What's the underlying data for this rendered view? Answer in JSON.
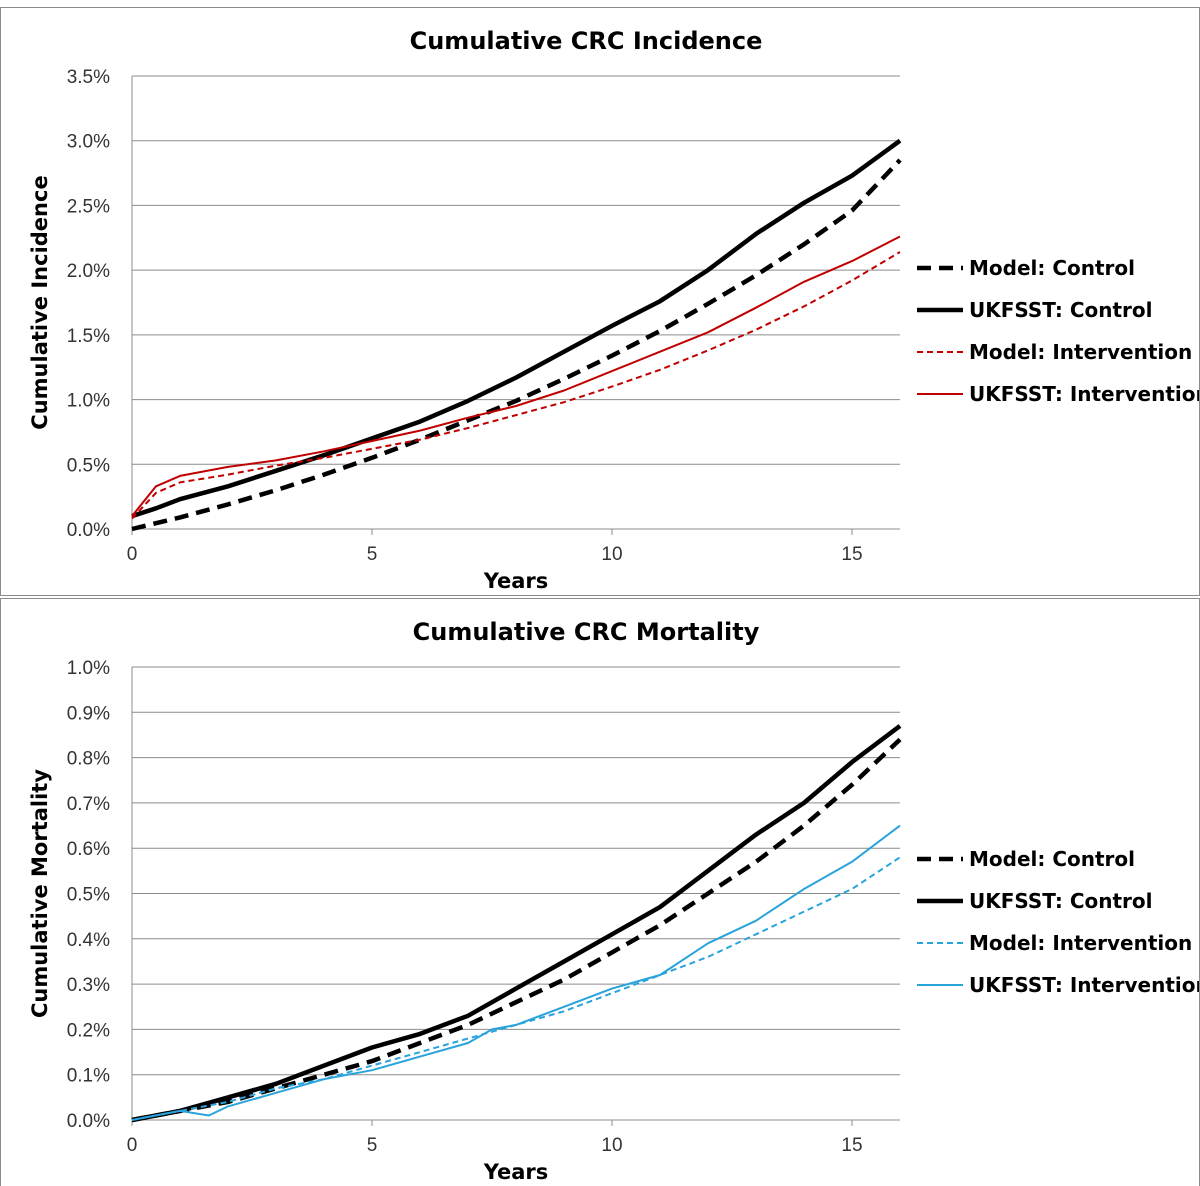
{
  "chart_data": [
    {
      "type": "line",
      "title": "Cumulative CRC Incidence",
      "xlabel": "Years",
      "ylabel": "Cumulative Incidence",
      "xlim": [
        0,
        16
      ],
      "ylim": [
        0,
        3.5
      ],
      "x_ticks": [
        "0",
        "5",
        "10",
        "15"
      ],
      "y_ticks": [
        "0.0%",
        "0.5%",
        "1.0%",
        "1.5%",
        "2.0%",
        "2.5%",
        "3.0%",
        "3.5%"
      ],
      "grid": true,
      "legend_position": "right",
      "series": [
        {
          "name": "Model: Control",
          "color": "#000000",
          "style": "dashed-thick",
          "x": [
            0,
            1,
            2,
            3,
            4,
            5,
            6,
            7,
            8,
            9,
            10,
            11,
            12,
            13,
            14,
            15,
            16
          ],
          "y": [
            0.0,
            0.09,
            0.19,
            0.3,
            0.42,
            0.55,
            0.69,
            0.84,
            0.99,
            1.16,
            1.34,
            1.53,
            1.74,
            1.96,
            2.2,
            2.46,
            2.85
          ]
        },
        {
          "name": "UKFSST: Control",
          "color": "#000000",
          "style": "solid-thick",
          "x": [
            0,
            0.5,
            1,
            2,
            3,
            4,
            5,
            6,
            7,
            8,
            9,
            10,
            11,
            12,
            13,
            14,
            15,
            16
          ],
          "y": [
            0.1,
            0.16,
            0.23,
            0.33,
            0.45,
            0.57,
            0.7,
            0.83,
            0.99,
            1.17,
            1.37,
            1.57,
            1.76,
            2.0,
            2.28,
            2.52,
            2.73,
            3.0
          ]
        },
        {
          "name": "Model: Intervention",
          "color": "#c00000",
          "style": "dashed-thin",
          "x": [
            0,
            0.5,
            1,
            2,
            3,
            4,
            5,
            6,
            7,
            8,
            9,
            10,
            11,
            12,
            13,
            14,
            15,
            16
          ],
          "y": [
            0.08,
            0.28,
            0.36,
            0.42,
            0.49,
            0.55,
            0.62,
            0.69,
            0.78,
            0.88,
            0.98,
            1.1,
            1.23,
            1.38,
            1.54,
            1.72,
            1.92,
            2.14
          ]
        },
        {
          "name": "UKFSST: Intervention",
          "color": "#c00000",
          "style": "solid-thin",
          "x": [
            0,
            0.5,
            1,
            2,
            3,
            4,
            5,
            6,
            7,
            8,
            9,
            10,
            11,
            12,
            13,
            14,
            15,
            16
          ],
          "y": [
            0.1,
            0.33,
            0.41,
            0.48,
            0.53,
            0.6,
            0.68,
            0.76,
            0.86,
            0.95,
            1.07,
            1.22,
            1.37,
            1.52,
            1.71,
            1.91,
            2.07,
            2.26
          ]
        }
      ]
    },
    {
      "type": "line",
      "title": "Cumulative CRC Mortality",
      "xlabel": "Years",
      "ylabel": "Cumulative Mortality",
      "xlim": [
        0,
        16
      ],
      "ylim": [
        0,
        1.0
      ],
      "x_ticks": [
        "0",
        "5",
        "10",
        "15"
      ],
      "y_ticks": [
        "0.0%",
        "0.1%",
        "0.2%",
        "0.3%",
        "0.4%",
        "0.5%",
        "0.6%",
        "0.7%",
        "0.8%",
        "0.9%",
        "1.0%"
      ],
      "grid": true,
      "legend_position": "right",
      "series": [
        {
          "name": "Model: Control",
          "color": "#000000",
          "style": "dashed-thick",
          "x": [
            0,
            1,
            2,
            3,
            4,
            5,
            6,
            7,
            8,
            9,
            10,
            11,
            12,
            13,
            14,
            15,
            16
          ],
          "y": [
            0.0,
            0.02,
            0.04,
            0.07,
            0.1,
            0.13,
            0.17,
            0.21,
            0.26,
            0.31,
            0.37,
            0.43,
            0.5,
            0.57,
            0.65,
            0.74,
            0.84
          ]
        },
        {
          "name": "UKFSST: Control",
          "color": "#000000",
          "style": "solid-thick",
          "x": [
            0,
            1,
            2,
            3,
            4,
            5,
            6,
            7,
            8,
            9,
            10,
            11,
            12,
            13,
            14,
            15,
            16
          ],
          "y": [
            0.0,
            0.02,
            0.05,
            0.08,
            0.12,
            0.16,
            0.19,
            0.23,
            0.29,
            0.35,
            0.41,
            0.47,
            0.55,
            0.63,
            0.7,
            0.79,
            0.87
          ]
        },
        {
          "name": "Model: Intervention",
          "color": "#29a3dc",
          "style": "dashed-thin",
          "x": [
            0,
            1,
            2,
            3,
            4,
            5,
            6,
            7,
            8,
            9,
            10,
            11,
            12,
            13,
            14,
            15,
            16
          ],
          "y": [
            0.0,
            0.02,
            0.04,
            0.07,
            0.09,
            0.12,
            0.15,
            0.18,
            0.21,
            0.24,
            0.28,
            0.32,
            0.36,
            0.41,
            0.46,
            0.51,
            0.58
          ]
        },
        {
          "name": "UKFSST: Intervention",
          "color": "#29a3dc",
          "style": "solid-thin",
          "x": [
            0,
            1,
            1.6,
            2,
            3,
            4,
            5,
            6,
            7,
            7.5,
            8,
            9,
            10,
            11,
            12,
            13,
            14,
            15,
            16
          ],
          "y": [
            0.0,
            0.02,
            0.01,
            0.03,
            0.06,
            0.09,
            0.11,
            0.14,
            0.17,
            0.2,
            0.21,
            0.25,
            0.29,
            0.32,
            0.39,
            0.44,
            0.51,
            0.57,
            0.65
          ]
        }
      ]
    }
  ]
}
